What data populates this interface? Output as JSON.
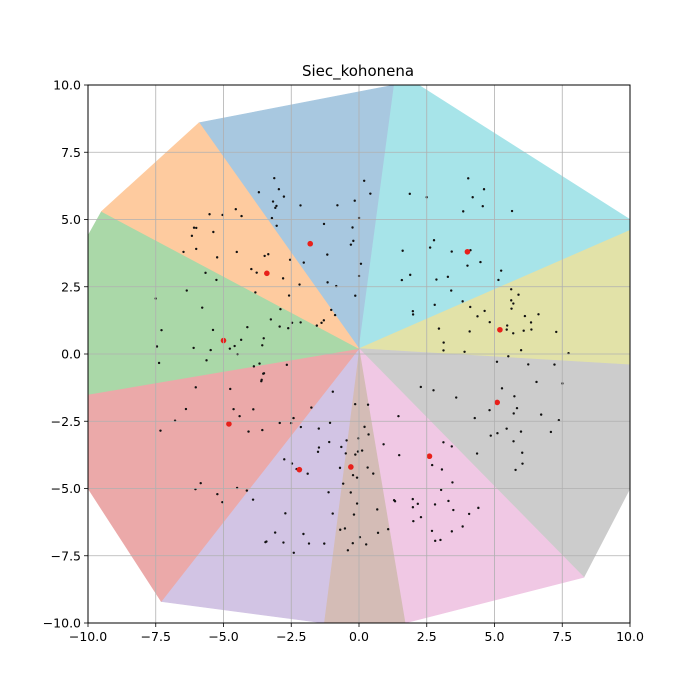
{
  "chart_data": {
    "type": "scatter",
    "title": "Siec_kohonena",
    "xlabel": "",
    "ylabel": "",
    "xlim": [
      -10,
      10
    ],
    "ylim": [
      -10,
      10
    ],
    "x_ticks": [
      -10.0,
      -7.5,
      -5.0,
      -2.5,
      0.0,
      2.5,
      5.0,
      7.5,
      10.0
    ],
    "y_ticks": [
      -10.0,
      -7.5,
      -5.0,
      -2.5,
      0.0,
      2.5,
      5.0,
      7.5,
      10.0
    ],
    "x_tick_labels": [
      "−10.0",
      "−7.5",
      "−5.0",
      "−2.5",
      "0.0",
      "2.5",
      "5.0",
      "7.5",
      "10.0"
    ],
    "y_tick_labels": [
      "−10.0",
      "−7.5",
      "−5.0",
      "−2.5",
      "0.0",
      "2.5",
      "5.0",
      "7.5",
      "10.0"
    ],
    "grid": true,
    "boundary": [
      [
        -10,
        4.4
      ],
      [
        -9.5,
        5.3
      ],
      [
        -5.9,
        8.6
      ],
      [
        1.3,
        10
      ],
      [
        2.2,
        10
      ],
      [
        10,
        5.0
      ],
      [
        10,
        -5.0
      ],
      [
        8.3,
        -8.3
      ],
      [
        1.7,
        -10
      ],
      [
        -7.3,
        -9.2
      ],
      [
        -10,
        -5.0
      ]
    ],
    "center": [
      0,
      0.2
    ],
    "regions": [
      {
        "color": "#a8c8e0",
        "neuron": [
          -1.8,
          4.1
        ],
        "wedge": [
          [
            0,
            0.2
          ],
          [
            -5.9,
            8.6
          ],
          [
            1.3,
            10
          ]
        ]
      },
      {
        "color": "#a7e4e9",
        "neuron": [
          4.0,
          3.8
        ],
        "wedge": [
          [
            0,
            0.2
          ],
          [
            1.3,
            10
          ],
          [
            2.2,
            10
          ],
          [
            10,
            5.0
          ],
          [
            10,
            4.6
          ]
        ]
      },
      {
        "color": "#e2e2a8",
        "neuron": [
          5.2,
          0.9
        ],
        "wedge": [
          [
            0,
            0.2
          ],
          [
            10,
            4.6
          ],
          [
            10,
            -0.4
          ]
        ]
      },
      {
        "color": "#cccccc",
        "neuron": [
          5.1,
          -1.8
        ],
        "wedge": [
          [
            0,
            0.2
          ],
          [
            10,
            -0.4
          ],
          [
            10,
            -5.0
          ],
          [
            8.3,
            -8.3
          ]
        ]
      },
      {
        "color": "#f0c8e4",
        "neuron": [
          2.6,
          -3.8
        ],
        "wedge": [
          [
            0,
            0.2
          ],
          [
            8.3,
            -8.3
          ],
          [
            1.7,
            -10
          ]
        ]
      },
      {
        "color": "#d4bcb6",
        "neuron": [
          -0.3,
          -4.2
        ],
        "wedge": [
          [
            0,
            0.2
          ],
          [
            1.7,
            -10
          ],
          [
            -1.3,
            -10
          ]
        ]
      },
      {
        "color": "#d2c4e4",
        "neuron": [
          -2.2,
          -4.3
        ],
        "wedge": [
          [
            0,
            0.2
          ],
          [
            -1.3,
            -10
          ],
          [
            -7.3,
            -9.2
          ]
        ]
      },
      {
        "color": "#eba9a9",
        "neuron": [
          -4.8,
          -2.6
        ],
        "wedge": [
          [
            0,
            0.2
          ],
          [
            -7.3,
            -9.2
          ],
          [
            -10,
            -5.0
          ],
          [
            -10,
            -1.5
          ]
        ]
      },
      {
        "color": "#aad8a8",
        "neuron": [
          -5.0,
          0.5
        ],
        "wedge": [
          [
            0,
            0.2
          ],
          [
            -10,
            -1.5
          ],
          [
            -10,
            4.4
          ],
          [
            -9.5,
            5.3
          ]
        ]
      },
      {
        "color": "#fecb9f",
        "neuron": [
          -3.4,
          3.0
        ],
        "wedge": [
          [
            0,
            0.2
          ],
          [
            -9.5,
            5.3
          ],
          [
            -5.9,
            8.6
          ]
        ]
      }
    ],
    "neuron_color": "#e8201a",
    "sample_color": "#111111",
    "samples_per_region": 26
  }
}
